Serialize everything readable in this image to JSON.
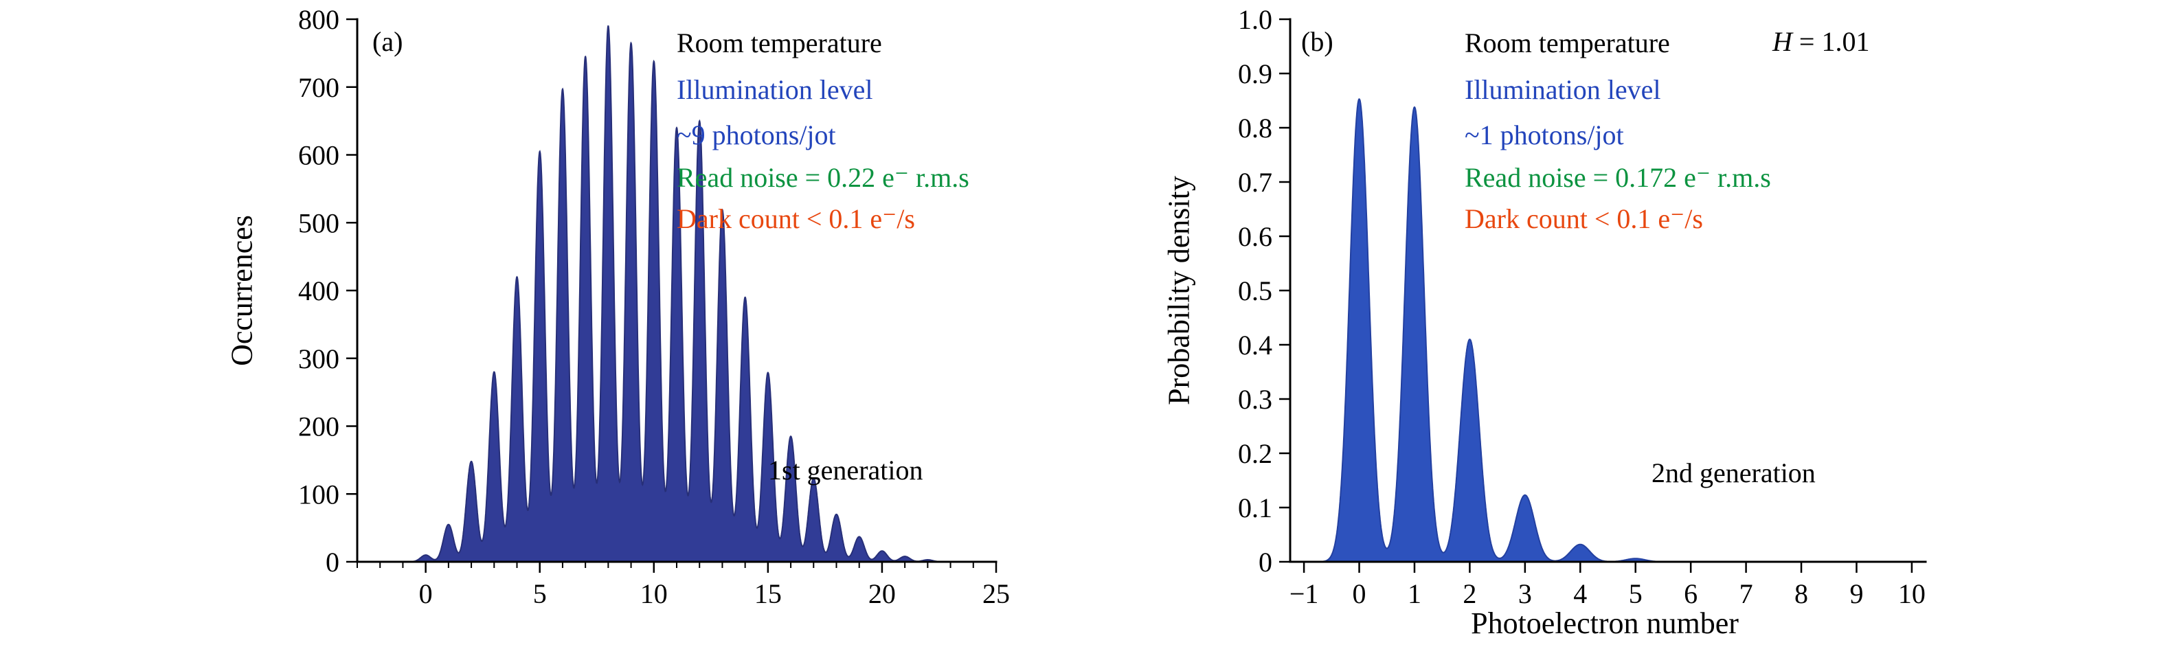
{
  "page": {
    "background": "#ffffff"
  },
  "colors": {
    "axis": "#000000",
    "text_black": "#000000",
    "text_blue": "#2244bb",
    "text_green": "#0c9340",
    "text_red": "#e8470f",
    "fill_a": "#313c96",
    "stroke_a": "#272f78",
    "fill_b": "#2d52bd",
    "stroke_b": "#2340a0"
  },
  "chart_data": [
    {
      "panel": "(a)",
      "type": "area",
      "xlabel": "",
      "ylabel": "Occurrences",
      "xlim": [
        -3,
        25
      ],
      "ylim": [
        0,
        800
      ],
      "x_ticks": [
        0,
        5,
        10,
        15,
        20,
        25
      ],
      "x_tick_labels": [
        "0",
        "5",
        "10",
        "15",
        "20",
        "25"
      ],
      "x_minor_step": 1,
      "y_ticks": [
        0,
        100,
        200,
        300,
        400,
        500,
        600,
        700,
        800
      ],
      "y_tick_labels": [
        "0",
        "100",
        "200",
        "300",
        "400",
        "500",
        "600",
        "700",
        "800"
      ],
      "grid": false,
      "peak_sigma": 0.22,
      "peak_centers": [
        0,
        1,
        2,
        3,
        4,
        5,
        6,
        7,
        8,
        9,
        10,
        11,
        12,
        13,
        14,
        15,
        16,
        17,
        18,
        19,
        20,
        21,
        22
      ],
      "peak_heights": [
        10,
        55,
        148,
        280,
        420,
        605,
        697,
        745,
        790,
        765,
        738,
        640,
        650,
        519,
        390,
        279,
        185,
        123,
        70,
        37,
        16,
        8,
        3
      ],
      "annotations": {
        "panel_tag": "(a)",
        "room": "Room temperature",
        "illumination_1": "Illumination level",
        "illumination_2": "~9 photons/jot",
        "read_noise": "Read noise = 0.22 e⁻ r.m.s",
        "dark_count": "Dark count < 0.1 e⁻/s",
        "generation": "1st generation"
      }
    },
    {
      "panel": "(b)",
      "type": "area",
      "xlabel": "Photoelectron number",
      "ylabel": "Probability density",
      "xlim": [
        -1.25,
        10.25
      ],
      "ylim": [
        0,
        1.0
      ],
      "x_ticks": [
        -1,
        0,
        1,
        2,
        3,
        4,
        5,
        6,
        7,
        8,
        9,
        10
      ],
      "x_tick_labels": [
        "−1",
        "0",
        "1",
        "2",
        "3",
        "4",
        "5",
        "6",
        "7",
        "8",
        "9",
        "10"
      ],
      "x_minor_step": 0,
      "y_ticks": [
        0,
        0.1,
        0.2,
        0.3,
        0.4,
        0.5,
        0.6,
        0.7,
        0.8,
        0.9,
        1.0
      ],
      "y_tick_labels": [
        "0",
        "0.1",
        "0.2",
        "0.3",
        "0.4",
        "0.5",
        "0.6",
        "0.7",
        "0.8",
        "0.9",
        "1.0"
      ],
      "grid": false,
      "peak_sigma": 0.172,
      "peak_centers": [
        0,
        1,
        2,
        3,
        4,
        5
      ],
      "peak_heights": [
        0.853,
        0.838,
        0.41,
        0.123,
        0.032,
        0.006
      ],
      "annotations": {
        "panel_tag": "(b)",
        "room": "Room temperature",
        "h_symbol": "H",
        "h_rest": " = 1.01",
        "illumination_1": "Illumination level",
        "illumination_2": "~1 photons/jot",
        "read_noise": "Read noise = 0.172 e⁻ r.m.s",
        "dark_count": "Dark count < 0.1 e⁻/s",
        "generation": "2nd generation"
      }
    }
  ]
}
